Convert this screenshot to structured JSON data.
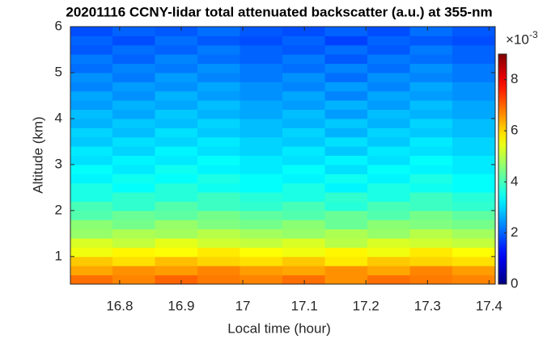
{
  "chart_data": {
    "type": "heatmap",
    "title": "20201116 CCNY-lidar total attenuated backscatter (a.u.) at 355-nm",
    "x_label": "Local time (hour)",
    "y_label": "Altitude (km)",
    "xlim": [
      16.72,
      17.41
    ],
    "xticks": [
      16.8,
      16.9,
      17,
      17.1,
      17.2,
      17.3,
      17.4
    ],
    "ylim": [
      0.4,
      6
    ],
    "yticks": [
      1,
      2,
      3,
      4,
      5,
      6
    ],
    "clim": [
      0,
      9
    ],
    "cticks": [
      0,
      2,
      4,
      6,
      8
    ],
    "colorbar_scale": {
      "base": "×10",
      "exponent": "-3"
    },
    "colormap": "jet",
    "x": [
      16.7545,
      16.8235,
      16.8925,
      16.9615,
      17.0305,
      17.0995,
      17.1685,
      17.2375,
      17.3065,
      17.3755
    ],
    "y": [
      0.5,
      0.7,
      0.9,
      1.1,
      1.3,
      1.5,
      1.7,
      1.9,
      2.1,
      2.3,
      2.5,
      2.7,
      2.9,
      3.1,
      3.3,
      3.5,
      3.7,
      3.9,
      4.1,
      4.3,
      4.5,
      4.7,
      4.9,
      5.1,
      5.3,
      5.5,
      5.7,
      5.9
    ],
    "z": [
      [
        6.9,
        6.7,
        7.0,
        6.8,
        6.7,
        6.9,
        6.6,
        6.9,
        6.8,
        6.7
      ],
      [
        6.4,
        6.6,
        6.5,
        6.7,
        6.5,
        6.4,
        6.6,
        6.4,
        6.7,
        6.5
      ],
      [
        6.1,
        5.9,
        6.2,
        6.0,
        5.9,
        6.1,
        5.8,
        6.1,
        6.0,
        5.9
      ],
      [
        5.5,
        5.7,
        5.6,
        5.8,
        5.6,
        5.5,
        5.7,
        5.5,
        5.8,
        5.6
      ],
      [
        5.3,
        5.1,
        5.4,
        5.2,
        5.1,
        5.3,
        5.0,
        5.3,
        5.2,
        5.1
      ],
      [
        4.7,
        4.9,
        4.8,
        5.0,
        4.8,
        4.7,
        4.9,
        4.7,
        5.0,
        4.8
      ],
      [
        4.6,
        4.4,
        4.7,
        4.5,
        4.4,
        4.6,
        4.3,
        4.6,
        4.5,
        4.4
      ],
      [
        4.1,
        4.3,
        4.2,
        4.4,
        4.2,
        4.1,
        4.3,
        4.1,
        4.4,
        4.2
      ],
      [
        4.0,
        3.8,
        4.1,
        3.9,
        3.8,
        4.0,
        3.7,
        4.0,
        3.9,
        3.8
      ],
      [
        3.6,
        3.8,
        3.7,
        3.9,
        3.7,
        3.6,
        3.8,
        3.6,
        3.9,
        3.7
      ],
      [
        3.6,
        3.4,
        3.7,
        3.5,
        3.4,
        3.6,
        3.3,
        3.6,
        3.5,
        3.4
      ],
      [
        3.3,
        3.5,
        3.4,
        3.6,
        3.4,
        3.3,
        3.5,
        3.3,
        3.6,
        3.4
      ],
      [
        3.4,
        3.2,
        3.5,
        3.3,
        3.2,
        3.4,
        3.1,
        3.4,
        3.3,
        3.2
      ],
      [
        3.1,
        3.3,
        3.2,
        3.4,
        3.2,
        3.1,
        3.3,
        3.1,
        3.4,
        3.2
      ],
      [
        3.2,
        3.0,
        3.3,
        3.1,
        3.0,
        3.2,
        2.9,
        3.2,
        3.1,
        3.0
      ],
      [
        2.9,
        3.1,
        3.0,
        3.2,
        3.0,
        2.9,
        3.1,
        2.9,
        3.2,
        3.0
      ],
      [
        3.0,
        2.8,
        3.1,
        2.9,
        2.8,
        3.0,
        2.7,
        3.0,
        2.9,
        2.8
      ],
      [
        2.7,
        2.9,
        2.8,
        3.0,
        2.8,
        2.7,
        2.9,
        2.7,
        3.0,
        2.8
      ],
      [
        2.8,
        2.6,
        2.9,
        2.7,
        2.6,
        2.8,
        2.5,
        2.8,
        2.7,
        2.6
      ],
      [
        2.5,
        2.7,
        2.6,
        2.8,
        2.6,
        2.5,
        2.7,
        2.5,
        2.8,
        2.6
      ],
      [
        2.6,
        2.4,
        2.7,
        2.5,
        2.4,
        2.6,
        2.3,
        2.6,
        2.5,
        2.4
      ],
      [
        2.3,
        2.5,
        2.4,
        2.6,
        2.4,
        2.3,
        2.5,
        2.3,
        2.6,
        2.4
      ],
      [
        2.4,
        2.2,
        2.5,
        2.3,
        2.2,
        2.4,
        2.1,
        2.4,
        2.3,
        2.2
      ],
      [
        2.1,
        2.3,
        2.2,
        2.4,
        2.2,
        2.1,
        2.3,
        2.1,
        2.4,
        2.2
      ],
      [
        2.2,
        2.0,
        2.3,
        2.1,
        2.0,
        2.2,
        1.9,
        2.2,
        2.1,
        2.0
      ],
      [
        1.9,
        2.1,
        2.0,
        2.2,
        2.0,
        1.9,
        2.1,
        1.9,
        2.2,
        2.0
      ],
      [
        2.0,
        1.8,
        2.1,
        1.9,
        1.8,
        2.0,
        1.7,
        2.0,
        1.9,
        1.8
      ],
      [
        1.8,
        2.0,
        1.9,
        2.1,
        1.9,
        1.8,
        2.0,
        1.8,
        2.1,
        1.9
      ]
    ]
  }
}
